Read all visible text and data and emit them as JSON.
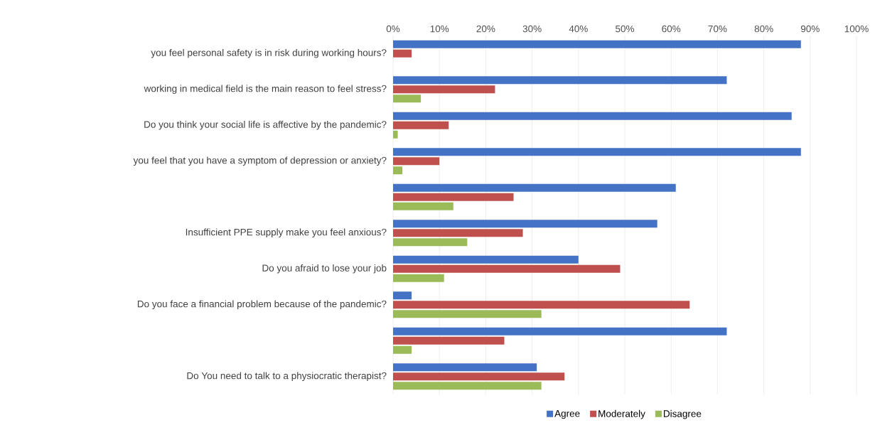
{
  "chart_data": {
    "type": "bar",
    "orientation": "horizontal",
    "categories": [
      "you feel personal safety is in risk during working hours?",
      "working in medical field is the main reason to feel stress?",
      "Do you think your social life is affective by the pandemic?",
      "you feel that you have a symptom of depression or anxiety?",
      null,
      "Insufficient PPE supply make you feel anxious?",
      "Do you afraid to lose your job",
      "Do you face a financial problem because of the pandemic?",
      null,
      "Do You need to talk to a physiocratic therapist?"
    ],
    "series": [
      {
        "name": "Agree",
        "color": "#4472c4",
        "values": [
          88,
          72,
          86,
          88,
          61,
          57,
          40,
          4,
          72,
          31
        ]
      },
      {
        "name": "Moderately",
        "color": "#c0504d",
        "values": [
          4,
          22,
          12,
          10,
          26,
          28,
          49,
          64,
          24,
          37
        ]
      },
      {
        "name": "Disagree",
        "color": "#9bbb59",
        "values": [
          0,
          6,
          1,
          2,
          13,
          16,
          11,
          32,
          4,
          32
        ]
      }
    ],
    "xlim": [
      0,
      100
    ],
    "xticks": [
      {
        "value": 0,
        "label": "0%"
      },
      {
        "value": 10,
        "label": "10%"
      },
      {
        "value": 20,
        "label": "20%"
      },
      {
        "value": 30,
        "label": "30%"
      },
      {
        "value": 40,
        "label": "40%"
      },
      {
        "value": 50,
        "label": "50%"
      },
      {
        "value": 60,
        "label": "60%"
      },
      {
        "value": 70,
        "label": "70%"
      },
      {
        "value": 80,
        "label": "80%"
      },
      {
        "value": 90,
        "label": "90%"
      },
      {
        "value": 100,
        "label": "100%"
      }
    ],
    "grid": "x",
    "legend": "bottom"
  }
}
